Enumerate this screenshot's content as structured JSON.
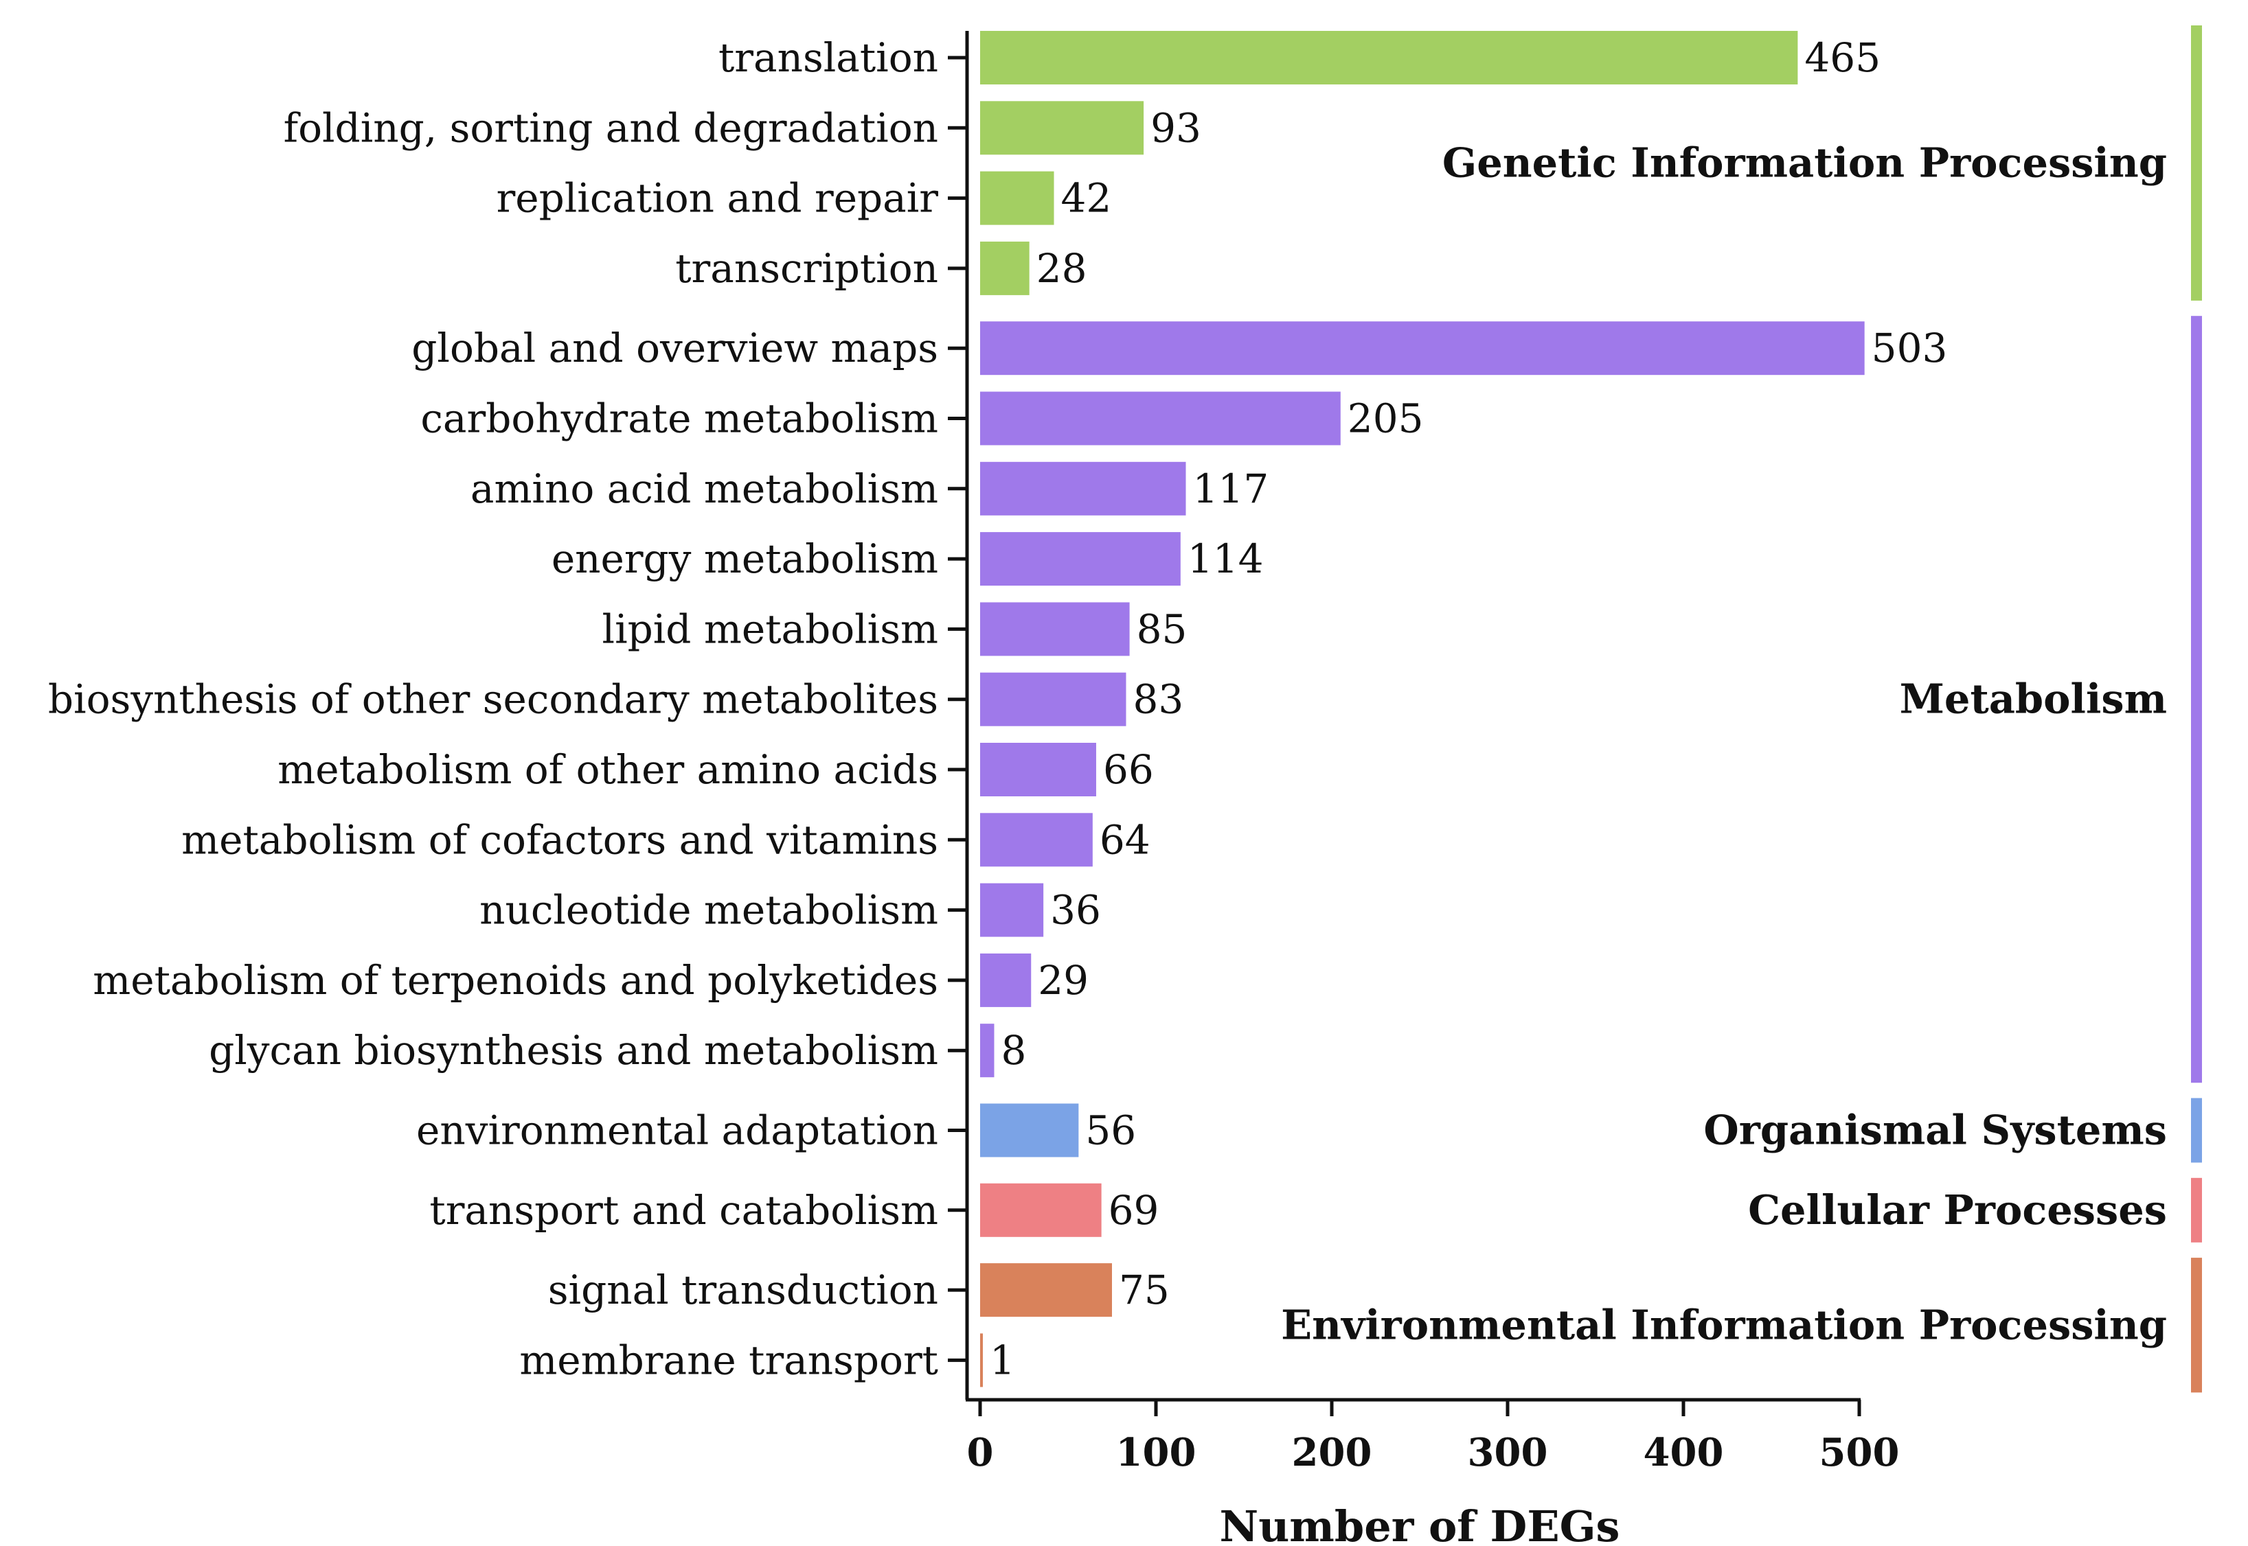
{
  "chart_data": {
    "type": "bar",
    "orientation": "horizontal",
    "title": "",
    "xlabel": "Number of  DEGs",
    "ylabel": "",
    "xlim": [
      0,
      500
    ],
    "xticks": [
      0,
      100,
      200,
      300,
      400,
      500
    ],
    "grid": false,
    "colors": {
      "Genetic Information Processing": "#a3cf62",
      "Metabolism": "#9f79ea",
      "Organismal Systems": "#7ba3e6",
      "Cellular Processes": "#ee8084",
      "Environmental Information Processing": "#d9825b"
    },
    "groups": [
      {
        "name": "Genetic Information Processing",
        "categories": [
          "translation",
          "folding, sorting and degradation",
          "replication and repair",
          "transcription"
        ],
        "values": [
          465,
          93,
          42,
          28
        ]
      },
      {
        "name": "Metabolism",
        "categories": [
          "global and overview maps",
          "carbohydrate metabolism",
          "amino acid metabolism",
          "energy metabolism",
          "lipid metabolism",
          "biosynthesis of other secondary metabolites",
          "metabolism of other amino acids",
          "metabolism of cofactors and vitamins",
          "nucleotide metabolism",
          "metabolism of terpenoids and polyketides",
          "glycan biosynthesis and metabolism"
        ],
        "values": [
          503,
          205,
          117,
          114,
          85,
          83,
          66,
          64,
          36,
          29,
          8
        ]
      },
      {
        "name": "Organismal Systems",
        "categories": [
          "environmental adaptation"
        ],
        "values": [
          56
        ]
      },
      {
        "name": "Cellular Processes",
        "categories": [
          "transport and catabolism"
        ],
        "values": [
          69
        ]
      },
      {
        "name": "Environmental Information Processing",
        "categories": [
          "signal transduction",
          "membrane transport"
        ],
        "values": [
          75,
          1
        ]
      }
    ]
  }
}
